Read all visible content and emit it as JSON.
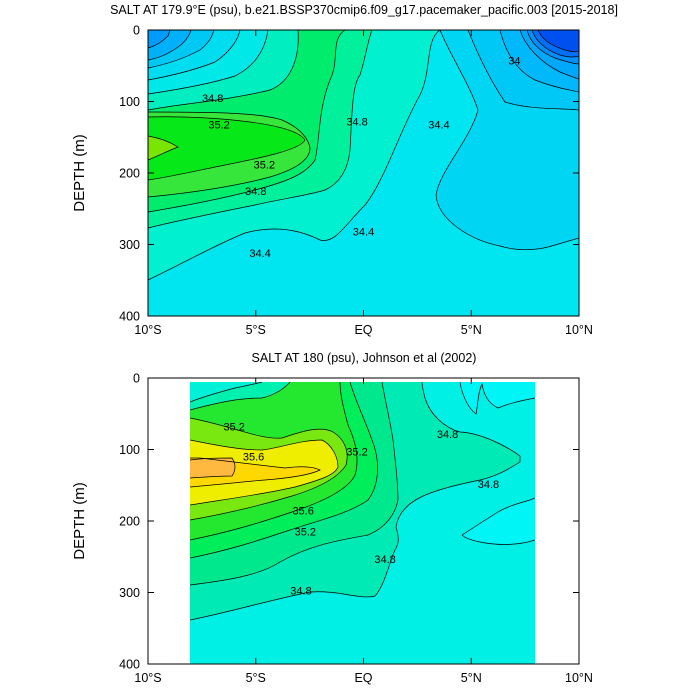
{
  "chart_data": [
    {
      "type": "contour",
      "title": "SALT AT 179.9°E (psu), b.e21.BSSP370cmip6.f09_g17.pacemaker_pacific.003 [2015-2018]",
      "ylabel": "DEPTH (m)",
      "xlim": [
        -10,
        10
      ],
      "ylim": [
        0,
        400
      ],
      "y_reversed": true,
      "x_ticks": [
        {
          "value": -10,
          "label": "10°S"
        },
        {
          "value": -5,
          "label": "5°S"
        },
        {
          "value": 0,
          "label": "EQ"
        },
        {
          "value": 5,
          "label": "5°N"
        },
        {
          "value": 10,
          "label": "10°N"
        }
      ],
      "y_ticks": [
        0,
        100,
        200,
        300,
        400
      ],
      "contour_levels": [
        33.8,
        34.0,
        34.2,
        34.4,
        34.6,
        34.8,
        35.0,
        35.2,
        35.4
      ],
      "contour_labels": [
        {
          "text": "34.8",
          "x": -7.0,
          "y": 95
        },
        {
          "text": "35.2",
          "x": -6.7,
          "y": 132
        },
        {
          "text": "34.8",
          "x": -0.3,
          "y": 128
        },
        {
          "text": "35.2",
          "x": -4.6,
          "y": 188
        },
        {
          "text": "34.8",
          "x": -5.0,
          "y": 225
        },
        {
          "text": "34.4",
          "x": -4.8,
          "y": 312
        },
        {
          "text": "34.4",
          "x": 0.0,
          "y": 282
        },
        {
          "text": "34.4",
          "x": 3.5,
          "y": 132
        },
        {
          "text": "34",
          "x": 7.0,
          "y": 43
        }
      ]
    },
    {
      "type": "contour",
      "title": "SALT AT 180 (psu), Johnson et al (2002)",
      "ylabel": "DEPTH (m)",
      "xlim": [
        -10,
        10
      ],
      "ylim": [
        0,
        400
      ],
      "y_reversed": true,
      "data_x_range": [
        -8,
        8
      ],
      "data_y_range": [
        5,
        400
      ],
      "x_ticks": [
        {
          "value": -10,
          "label": "10°S"
        },
        {
          "value": -5,
          "label": "5°S"
        },
        {
          "value": 0,
          "label": "EQ"
        },
        {
          "value": 5,
          "label": "5°N"
        },
        {
          "value": 10,
          "label": "10°N"
        }
      ],
      "y_ticks": [
        0,
        100,
        200,
        300,
        400
      ],
      "contour_levels": [
        34.6,
        34.8,
        35.0,
        35.2,
        35.4,
        35.6,
        35.8
      ],
      "contour_labels": [
        {
          "text": "35.2",
          "x": -6.0,
          "y": 68
        },
        {
          "text": "35.6",
          "x": -5.1,
          "y": 110
        },
        {
          "text": "35.2",
          "x": -0.3,
          "y": 103
        },
        {
          "text": "35.6",
          "x": -2.8,
          "y": 185
        },
        {
          "text": "35.2",
          "x": -2.7,
          "y": 215
        },
        {
          "text": "34.8",
          "x": 1.0,
          "y": 253
        },
        {
          "text": "34.8",
          "x": 3.9,
          "y": 78
        },
        {
          "text": "34.8",
          "x": 5.8,
          "y": 148
        },
        {
          "text": "34.8",
          "x": -2.9,
          "y": 297
        }
      ]
    }
  ]
}
